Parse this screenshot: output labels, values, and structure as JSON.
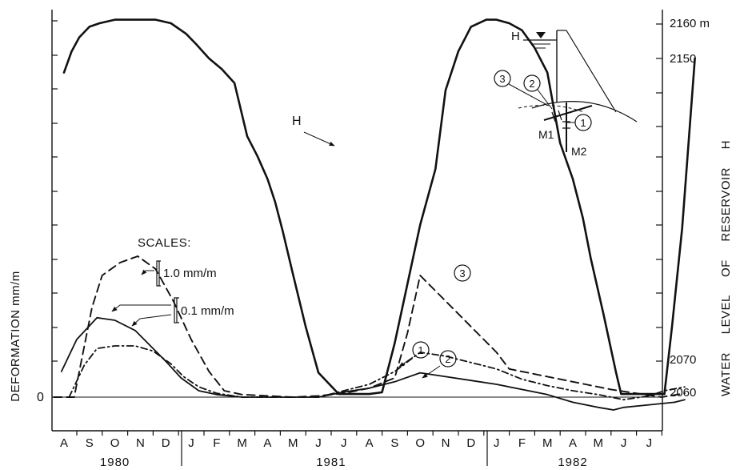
{
  "chart_data": {
    "type": "line",
    "ylabel_left": "DEFORMATION mm/m",
    "ylabel_right": "WATER LEVEL OF RESERVOIR H",
    "zero_label": "0",
    "x_months": [
      "A",
      "S",
      "O",
      "N",
      "D",
      "J",
      "F",
      "M",
      "A",
      "M",
      "J",
      "J",
      "A",
      "S",
      "O",
      "N",
      "D",
      "J",
      "F",
      "M",
      "A",
      "M",
      "J",
      "J"
    ],
    "x_years": [
      {
        "label": "1980",
        "start": 0,
        "end": 5
      },
      {
        "label": "1981",
        "start": 5,
        "end": 17
      },
      {
        "label": "1982",
        "start": 17,
        "end": 24
      }
    ],
    "right_ticks": [
      {
        "label": "2160 m",
        "value": 2160
      },
      {
        "label": "2150",
        "value": 2150
      },
      {
        "label": "2070",
        "value": 2070
      },
      {
        "label": "2060",
        "value": 2060
      }
    ],
    "scales_title": "SCALES:",
    "scale_items": [
      "1.0 mm/m",
      "0.1 mm/m"
    ],
    "grid": false,
    "series": [
      {
        "name": "H",
        "dash": "solid",
        "width": 2.6,
        "axis": "level",
        "x": [
          0,
          0.3,
          0.6,
          1.0,
          1.4,
          2.0,
          3.0,
          3.6,
          4.2,
          4.8,
          5.2,
          5.7,
          6.2,
          6.7,
          7.2,
          7.6,
          8.0,
          8.3,
          8.6,
          9.0,
          9.5,
          10.0,
          10.8,
          11.0,
          11.3,
          12.0,
          12.5,
          13.0,
          13.5,
          14.0,
          14.6,
          15.0,
          15.5,
          16.0,
          16.6,
          17.0,
          17.5,
          18.0,
          18.5,
          19.0,
          19.5,
          20.0,
          20.4,
          20.7,
          21.2,
          21.7,
          21.9,
          22.2,
          22.6,
          23.0,
          23.6
        ],
        "y": [
          2146,
          2152,
          2156,
          2159,
          2160,
          2161,
          2161,
          2161,
          2160,
          2157,
          2154,
          2150,
          2147,
          2143,
          2138,
          2132,
          2125,
          2118,
          2109,
          2096,
          2080,
          2066,
          2059.5,
          2059.5,
          2059.5,
          2059.5,
          2060,
          2075,
          2093,
          2111,
          2128,
          2141,
          2152,
          2159,
          2161,
          2161,
          2160,
          2158,
          2153,
          2146,
          2136,
          2125,
          2113,
          2101,
          2084,
          2066,
          2059.5,
          2059.5,
          2059.5,
          2059.5,
          2059.5
        ]
      },
      {
        "name": "H_tail",
        "dash": "solid",
        "width": 2.6,
        "axis": "level",
        "x": [
          23.6,
          23.9,
          24.3,
          24.8
        ],
        "y": [
          2059.5,
          2080,
          2110,
          2150
        ]
      },
      {
        "name": "1",
        "dash": "solid",
        "width": 1.8,
        "axis": "deformation",
        "x": [
          -0.1,
          0.5,
          1.3,
          2.0,
          2.8,
          3.2,
          4.0,
          4.6,
          5.3,
          6.0,
          7.0,
          8.0,
          9.0,
          10.0,
          11.0,
          12.0,
          13.0,
          14.0,
          15.0,
          16.0,
          17.0,
          18.0,
          19.0,
          20.0,
          21.0,
          21.6,
          22.0,
          23.0,
          24.0,
          24.4
        ],
        "y": [
          0.2,
          0.45,
          0.62,
          0.6,
          0.52,
          0.44,
          0.28,
          0.15,
          0.05,
          0.02,
          0,
          0,
          0,
          0,
          0.04,
          0.07,
          0.12,
          0.19,
          0.16,
          0.13,
          0.1,
          0.06,
          0.02,
          -0.04,
          -0.08,
          -0.1,
          -0.08,
          -0.06,
          -0.04,
          -0.02
        ]
      },
      {
        "name": "2",
        "dash": "8,4,2,4",
        "width": 1.8,
        "axis": "deformation",
        "x": [
          0.2,
          0.8,
          1.3,
          2.0,
          2.8,
          3.5,
          4.2,
          4.7,
          5.3,
          6.0,
          7.0,
          8.0,
          9.0,
          10.0,
          11.0,
          12.0,
          13.0,
          14.0,
          15.0,
          16.0,
          17.0,
          18.0,
          19.0,
          20.0,
          21.0,
          22.0,
          23.0,
          23.6,
          24.4
        ],
        "y": [
          0,
          0.25,
          0.38,
          0.4,
          0.4,
          0.36,
          0.26,
          0.16,
          0.08,
          0.03,
          0,
          0,
          0,
          0,
          0.05,
          0.1,
          0.2,
          0.35,
          0.32,
          0.27,
          0.22,
          0.14,
          0.09,
          0.05,
          0.02,
          -0.02,
          0.01,
          0.05,
          0.08
        ]
      },
      {
        "name": "3",
        "dash": "10,6",
        "width": 1.9,
        "axis": "deformation",
        "x": [
          -0.4,
          0.4,
          1.1,
          1.5,
          2.2,
          2.9,
          3.6,
          4.3,
          5.0,
          5.7,
          6.3,
          7.0,
          8.0,
          9.0,
          10.0,
          11.0,
          12.0,
          13.0,
          13.5,
          14.0,
          15.0,
          16.0,
          17.0,
          17.5,
          18.5,
          19.5,
          20.5,
          21.5,
          22.5,
          23.5,
          24.4
        ],
        "y": [
          0,
          0,
          0.7,
          0.95,
          1.05,
          1.1,
          1.0,
          0.75,
          0.45,
          0.2,
          0.05,
          0.02,
          0.01,
          0,
          0.01,
          0.03,
          0.07,
          0.15,
          0.5,
          0.95,
          0.75,
          0.55,
          0.35,
          0.22,
          0.18,
          0.14,
          0.1,
          0.06,
          0.03,
          0,
          0.03
        ]
      }
    ],
    "inset": {
      "h_label": "H",
      "labels": [
        "M1",
        "M2"
      ],
      "circles": [
        "3",
        "2",
        "1"
      ]
    },
    "annotations": [
      {
        "label": "H"
      },
      {
        "label": "1"
      },
      {
        "label": "2"
      },
      {
        "label": "3"
      }
    ]
  }
}
